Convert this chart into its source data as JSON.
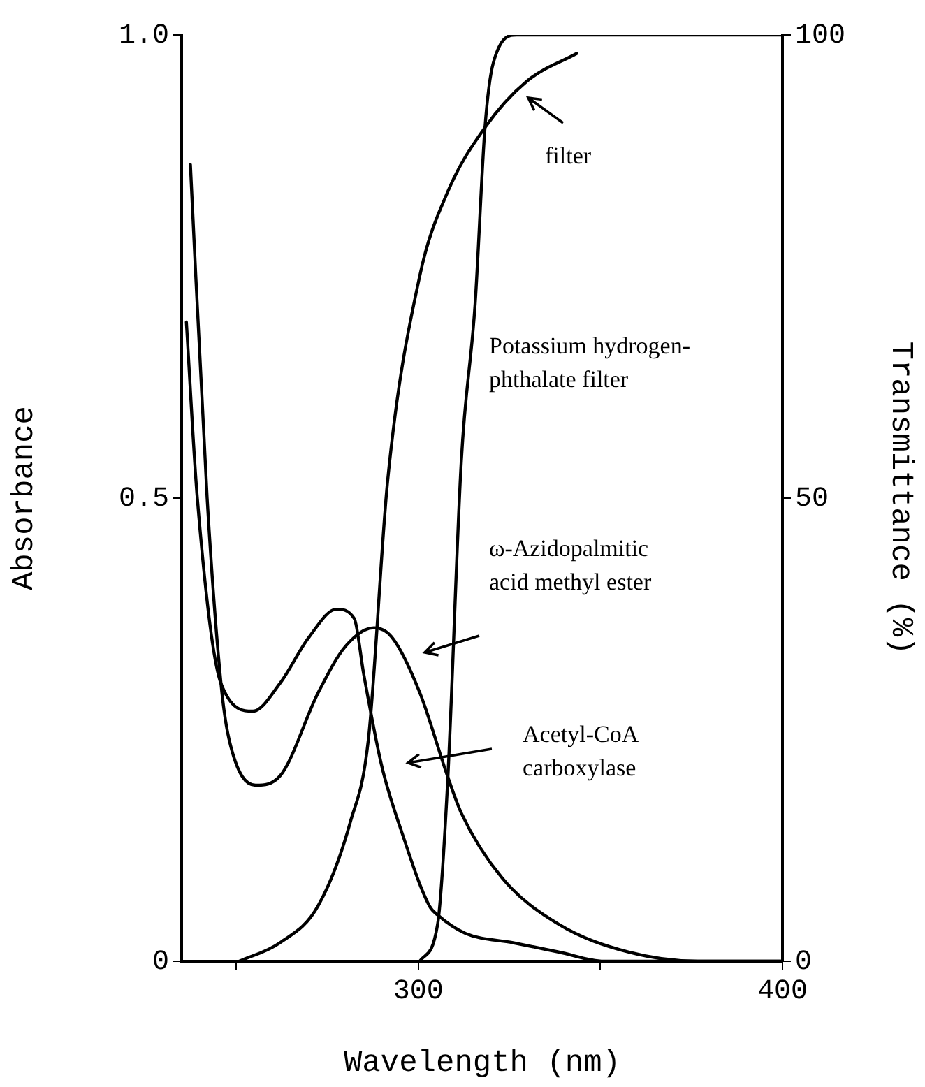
{
  "chart_data": {
    "type": "line",
    "xlabel": "Wavelength (nm)",
    "ylabel": "Absorbance",
    "y2label": "Transmittance (%)",
    "xlim": [
      235,
      400
    ],
    "xticks": [
      {
        "value": 250,
        "label": null
      },
      300,
      {
        "value": 350,
        "label": null
      },
      400
    ],
    "ylim": [
      0,
      1
    ],
    "yticks": [
      0,
      0.5,
      {
        "value": 1,
        "label": "1.0"
      }
    ],
    "y2lim": [
      0,
      100
    ],
    "y2ticks": [
      0,
      50,
      100
    ],
    "grid": false,
    "legend": false,
    "marker": "none",
    "line_style": "solid",
    "series": [
      {
        "color": "#000000",
        "x": [
          236.3,
          239.3,
          245.8,
          254.6,
          262,
          270,
          277.5,
          282.4,
          285,
          290,
          295.4,
          303,
          305.3,
          313,
          326,
          338.5,
          351,
          360,
          400
        ],
        "values": [
          0.69,
          0.5,
          0.3,
          0.27,
          0.3,
          0.35,
          0.38,
          0.37,
          0.31,
          0.21,
          0.14,
          0.06,
          0.05,
          0.03,
          0.02,
          0.01,
          0,
          0,
          0
        ]
      },
      {
        "color": "#000000",
        "x": [
          237.4,
          242,
          245.8,
          248,
          255.3,
          262,
          272.5,
          280,
          287.8,
          292.7,
          300.4,
          308,
          311.8,
          323,
          338.5,
          357.6,
          376.7,
          400
        ],
        "values": [
          0.86,
          0.5,
          0.3,
          0.24,
          0.19,
          0.2,
          0.29,
          0.34,
          0.36,
          0.35,
          0.29,
          0.2,
          0.16,
          0.09,
          0.04,
          0.01,
          0,
          0
        ]
      },
      {
        "color": "#000000",
        "axis": "y2",
        "x": [
          250.8,
          262,
          272.5,
          281.3,
          286.3,
          291.6,
          300.4,
          308,
          318.3,
          329.8,
          343.5
        ],
        "values": [
          0,
          2,
          6,
          15,
          24,
          52,
          74,
          83,
          90,
          95,
          98
        ]
      },
      {
        "color": "#000000",
        "axis": "y2",
        "x": [
          300.4,
          305.3,
          308,
          311.8,
          315.6,
          318.3,
          320.6,
          327,
          400
        ],
        "values": [
          0,
          4,
          19,
          54,
          71,
          90,
          97,
          100,
          100
        ]
      }
    ],
    "annotations": [
      "filter",
      "Potassium hydrogen-\nphthalate filter",
      "ω-Azidopalmitic\nacid methyl ester",
      "Acetyl-CoA\ncarboxylase"
    ]
  }
}
